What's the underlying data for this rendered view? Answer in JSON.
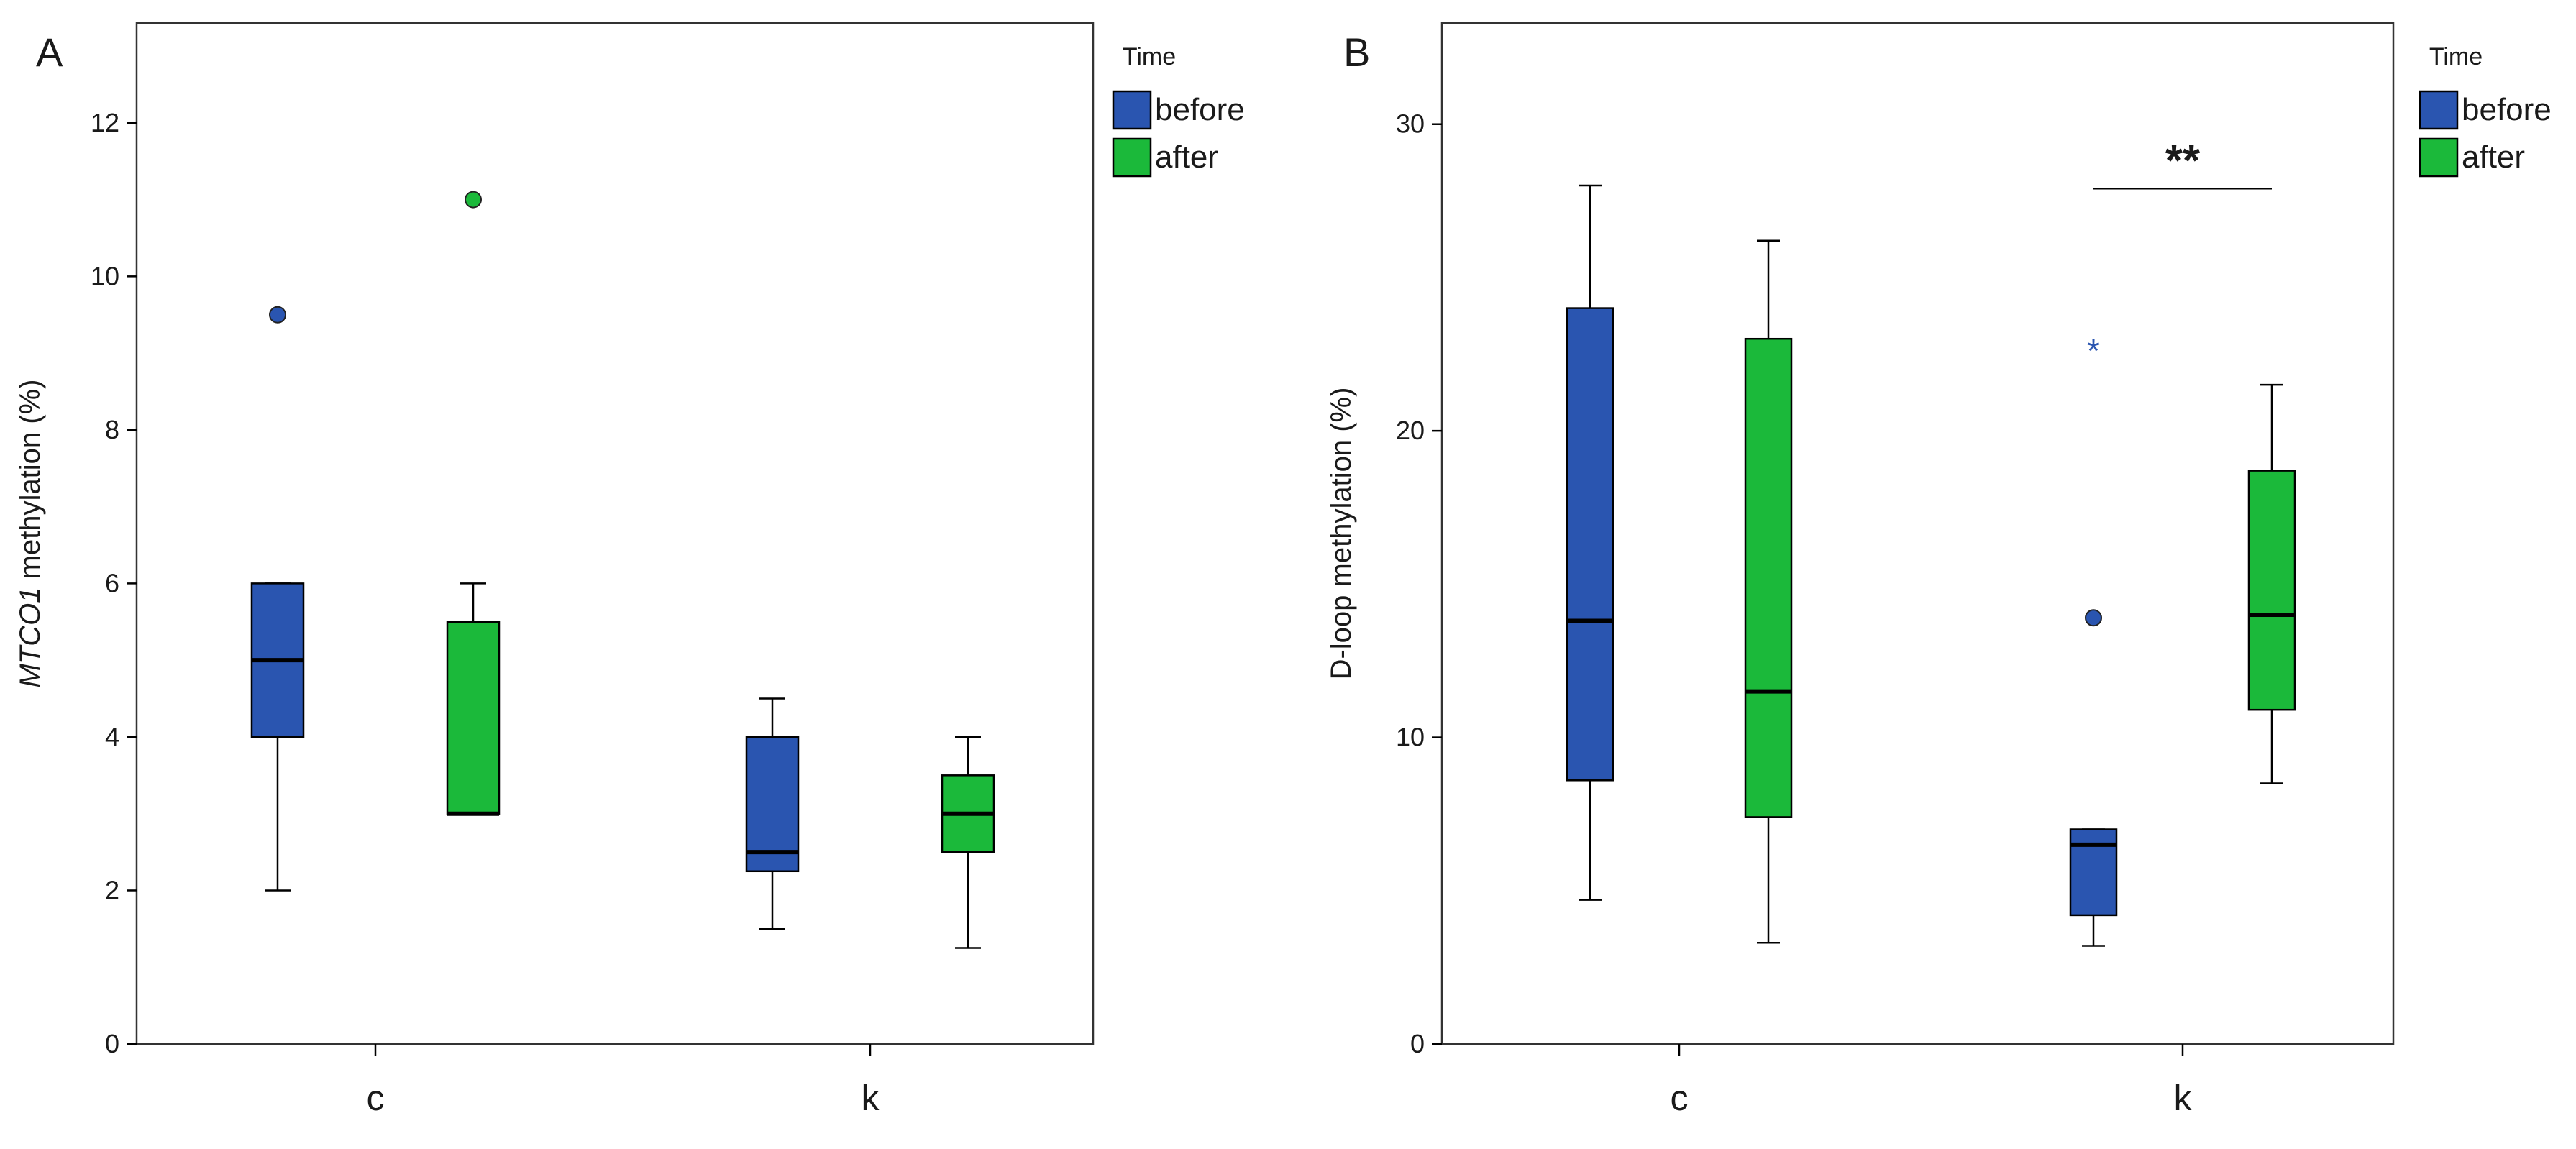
{
  "colors": {
    "before": "#2a55b0",
    "after": "#1bb93a",
    "frame": "#333333",
    "axis": "#000000",
    "sig": "#000000"
  },
  "chart_data": [
    {
      "type": "boxplot",
      "panel_label": "A",
      "ylabel_italic": "MTCO1",
      "ylabel_rest": " methylation (%)",
      "xlabel": "",
      "ylim": [
        0,
        13.3
      ],
      "yticks": [
        0,
        2,
        4,
        6,
        8,
        10,
        12
      ],
      "categories": [
        "c",
        "k"
      ],
      "legend": {
        "title": "Time",
        "entries": [
          "before",
          "after"
        ],
        "position": "top-right"
      },
      "series": [
        {
          "name": "before",
          "color": "#2a55b0",
          "boxes": [
            {
              "category": "c",
              "min": 2,
              "q1": 4,
              "median": 5,
              "q3": 6,
              "max": 6,
              "outliers": [
                9.5
              ],
              "extremes": []
            },
            {
              "category": "k",
              "min": 1.5,
              "q1": 2.25,
              "median": 2.5,
              "q3": 4,
              "max": 4.5,
              "outliers": [],
              "extremes": []
            }
          ]
        },
        {
          "name": "after",
          "color": "#1bb93a",
          "boxes": [
            {
              "category": "c",
              "min": 3,
              "q1": 3,
              "median": 3,
              "q3": 5.5,
              "max": 6,
              "outliers": [
                11
              ],
              "extremes": []
            },
            {
              "category": "k",
              "min": 1.25,
              "q1": 2.5,
              "median": 3,
              "q3": 3.5,
              "max": 4,
              "outliers": [],
              "extremes": []
            }
          ]
        }
      ],
      "annotations": []
    },
    {
      "type": "boxplot",
      "panel_label": "B",
      "ylabel_italic": "",
      "ylabel_rest": "D-loop methylation (%)",
      "xlabel": "",
      "ylim": [
        0,
        33.3
      ],
      "yticks": [
        0,
        10,
        20,
        30
      ],
      "categories": [
        "c",
        "k"
      ],
      "legend": {
        "title": "Time",
        "entries": [
          "before",
          "after"
        ],
        "position": "top-right"
      },
      "series": [
        {
          "name": "before",
          "color": "#2a55b0",
          "boxes": [
            {
              "category": "c",
              "min": 4.7,
              "q1": 8.6,
              "median": 13.8,
              "q3": 24,
              "max": 28,
              "outliers": [],
              "extremes": []
            },
            {
              "category": "k",
              "min": 3.2,
              "q1": 4.2,
              "median": 6.5,
              "q3": 7,
              "max": 7,
              "outliers": [
                13.9
              ],
              "extremes": [
                22.7
              ]
            }
          ]
        },
        {
          "name": "after",
          "color": "#1bb93a",
          "boxes": [
            {
              "category": "c",
              "min": 3.3,
              "q1": 7.4,
              "median": 11.5,
              "q3": 23,
              "max": 26.2,
              "outliers": [],
              "extremes": []
            },
            {
              "category": "k",
              "min": 8.5,
              "q1": 10.9,
              "median": 14,
              "q3": 18.7,
              "max": 21.5,
              "outliers": [],
              "extremes": []
            }
          ]
        }
      ],
      "annotations": [
        {
          "text": "**",
          "category": "k",
          "y": 27.9
        }
      ]
    }
  ]
}
